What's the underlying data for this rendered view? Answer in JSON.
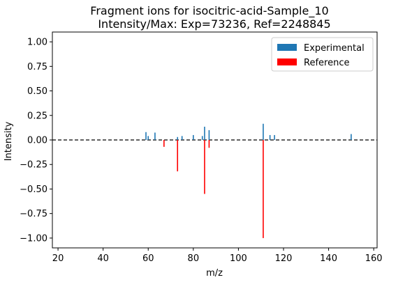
{
  "chart_data": {
    "type": "bar",
    "title_line1": "Fragment ions for isocitric-acid-Sample_10",
    "title_line2": "Intensity/Max: Exp=73236, Ref=2248845",
    "xlabel": "m/z",
    "ylabel": "Intensity",
    "xlim": [
      17.5,
      161.5
    ],
    "ylim": [
      -1.1,
      1.1
    ],
    "xticks": [
      20,
      40,
      60,
      80,
      100,
      120,
      140,
      160
    ],
    "yticks": [
      -1.0,
      -0.75,
      -0.5,
      -0.25,
      0.0,
      0.25,
      0.5,
      0.75,
      1.0
    ],
    "ytick_labels": [
      "−1.00",
      "−0.75",
      "−0.50",
      "−0.25",
      "0.00",
      "0.25",
      "0.50",
      "0.75",
      "1.00"
    ],
    "zero_line": "dashed",
    "grid": false,
    "legend_position": "top-right",
    "series": [
      {
        "name": "Experimental",
        "color": "#1f77b4",
        "points": [
          {
            "x": 59,
            "y": 0.08
          },
          {
            "x": 60,
            "y": 0.04
          },
          {
            "x": 63,
            "y": 0.075
          },
          {
            "x": 73,
            "y": 0.03
          },
          {
            "x": 75,
            "y": 0.04
          },
          {
            "x": 80,
            "y": 0.05
          },
          {
            "x": 84,
            "y": 0.04
          },
          {
            "x": 85,
            "y": 0.135
          },
          {
            "x": 87,
            "y": 0.1
          },
          {
            "x": 111,
            "y": 0.165
          },
          {
            "x": 114,
            "y": 0.05
          },
          {
            "x": 116,
            "y": 0.05
          },
          {
            "x": 150,
            "y": 0.06
          }
        ]
      },
      {
        "name": "Reference",
        "color": "#ff0000",
        "points": [
          {
            "x": 67,
            "y": -0.07
          },
          {
            "x": 73,
            "y": -0.32
          },
          {
            "x": 85,
            "y": -0.55
          },
          {
            "x": 87,
            "y": -0.08
          },
          {
            "x": 111,
            "y": -1.0
          }
        ]
      }
    ]
  }
}
